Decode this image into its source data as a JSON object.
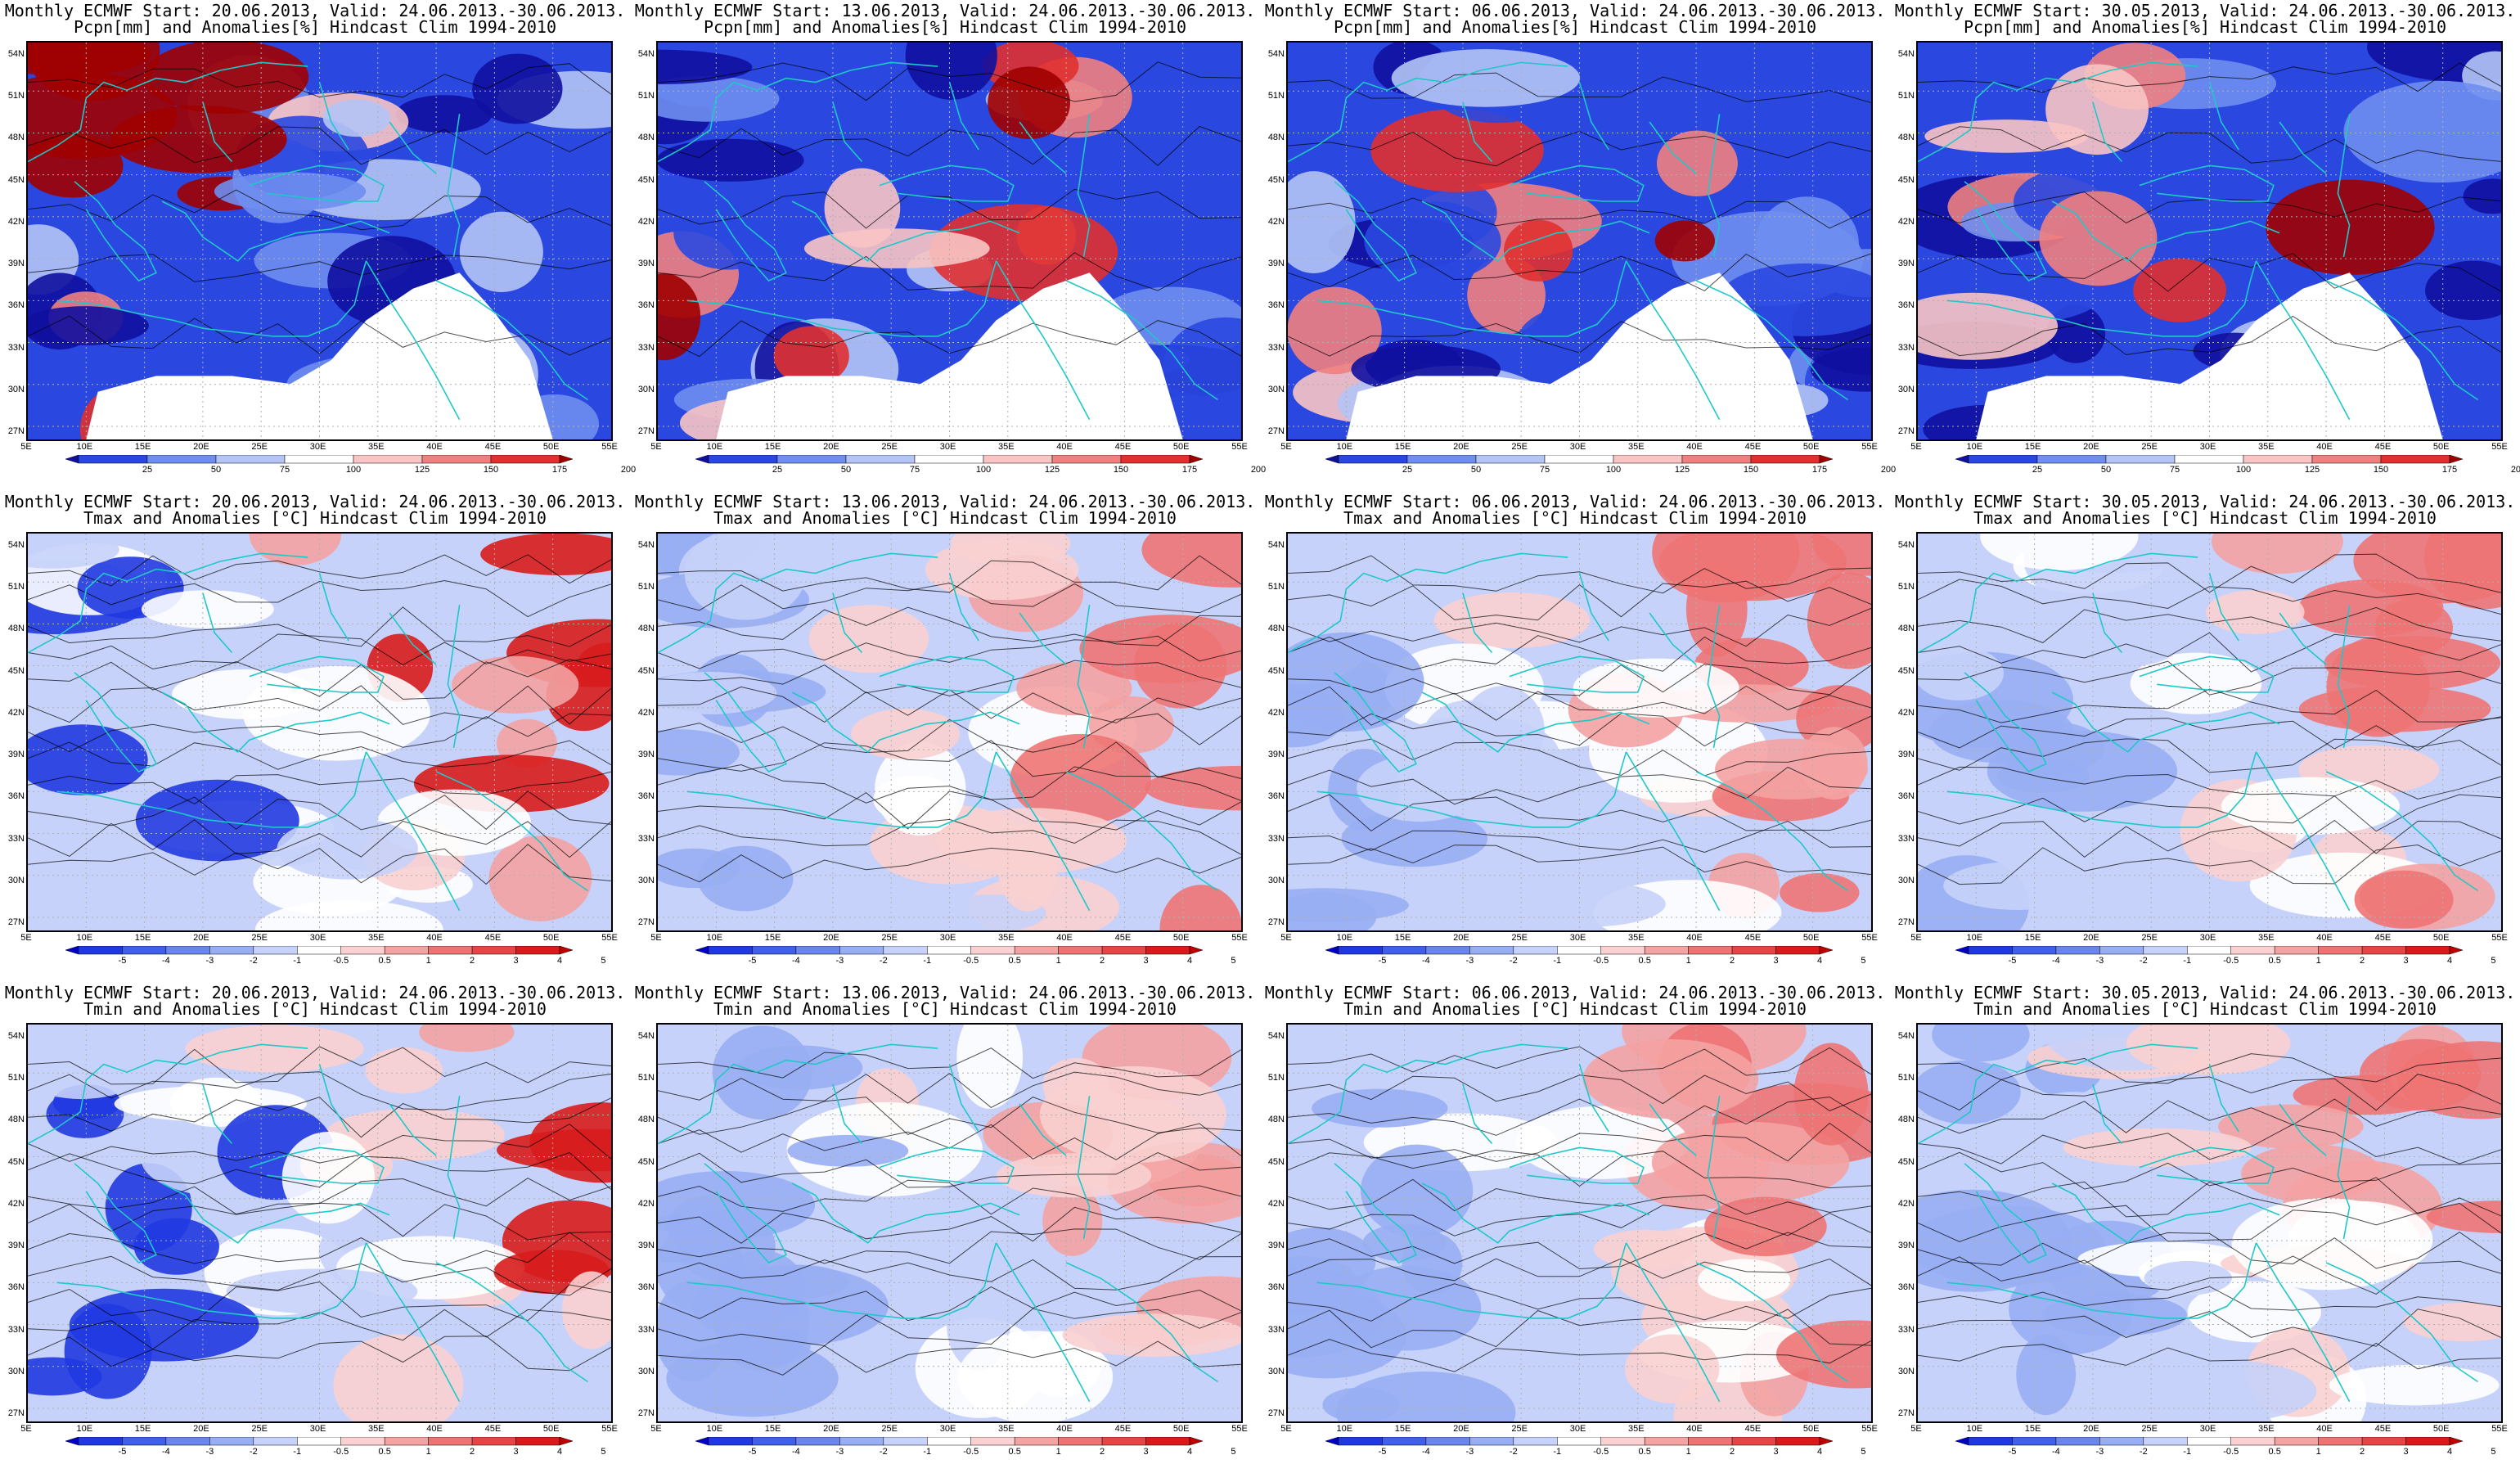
{
  "panel_rows": [
    {
      "variable_line": "Pcpn[mm] and Anomalies[%] Hindcast Clim 1994-2010",
      "colorbar_type": "precip",
      "colorbar_labels": [
        "25",
        "50",
        "75",
        "100",
        "125",
        "150",
        "175",
        "200"
      ],
      "colorbar_colors": [
        "#1010a0",
        "#2a48e0",
        "#6f8ef0",
        "#b4c4f5",
        "#ffffff",
        "#f8c4c4",
        "#f08080",
        "#e03030",
        "#a00000"
      ]
    },
    {
      "variable_line": "Tmax and Anomalies [°C] Hindcast Clim 1994-2010",
      "colorbar_type": "temp",
      "colorbar_labels": [
        "-5",
        "-4",
        "-3",
        "-2",
        "-1",
        "-0.5",
        "0.5",
        "1",
        "2",
        "3",
        "4",
        "5"
      ],
      "colorbar_colors": [
        "#0000c8",
        "#2038e0",
        "#4060e8",
        "#6a86ee",
        "#98aef4",
        "#c6d2fa",
        "#ffffff",
        "#fad0d0",
        "#f4a2a2",
        "#ee7474",
        "#e44646",
        "#d81c1c",
        "#c00000"
      ]
    },
    {
      "variable_line": "Tmin and Anomalies [°C] Hindcast Clim 1994-2010",
      "colorbar_type": "temp",
      "colorbar_labels": [
        "-5",
        "-4",
        "-3",
        "-2",
        "-1",
        "-0.5",
        "0.5",
        "1",
        "2",
        "3",
        "4",
        "5"
      ],
      "colorbar_colors": [
        "#0000c8",
        "#2038e0",
        "#4060e8",
        "#6a86ee",
        "#98aef4",
        "#c6d2fa",
        "#ffffff",
        "#fad0d0",
        "#f4a2a2",
        "#ee7474",
        "#e44646",
        "#d81c1c",
        "#c00000"
      ]
    }
  ],
  "panel_columns": [
    {
      "start_line": "Monthly ECMWF Start: 20.06.2013, Valid: 24.06.2013.-30.06.2013."
    },
    {
      "start_line": "Monthly ECMWF Start: 13.06.2013, Valid: 24.06.2013.-30.06.2013."
    },
    {
      "start_line": "Monthly ECMWF Start: 06.06.2013, Valid: 24.06.2013.-30.06.2013."
    },
    {
      "start_line": "Monthly ECMWF Start: 30.05.2013, Valid: 24.06.2013.-30.06.2013."
    }
  ],
  "lat_labels": [
    "54N",
    "51N",
    "48N",
    "45N",
    "42N",
    "39N",
    "36N",
    "33N",
    "30N",
    "27N"
  ],
  "lon_labels": [
    "5E",
    "10E",
    "15E",
    "20E",
    "25E",
    "30E",
    "35E",
    "40E",
    "45E",
    "50E",
    "55E"
  ],
  "map_style": {
    "coastline_color": "#1fc8c8",
    "contour_color": "#000000",
    "grid_color": "#b0b0b0",
    "no_data_color": "#ffffff"
  }
}
